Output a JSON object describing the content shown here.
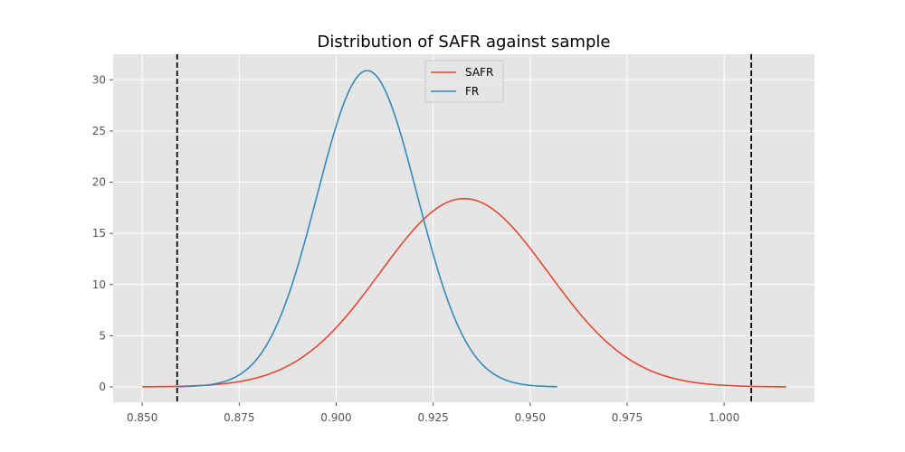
{
  "chart_data": {
    "type": "line",
    "title": "Distribution of SAFR against sample",
    "xlabel": "",
    "ylabel": "",
    "xlim": [
      0.8425,
      1.0233
    ],
    "ylim": [
      -1.5,
      32.5
    ],
    "x_ticks": [
      0.85,
      0.875,
      0.9,
      0.925,
      0.95,
      0.975,
      1.0
    ],
    "x_tick_labels": [
      "0.850",
      "0.875",
      "0.900",
      "0.925",
      "0.950",
      "0.975",
      "1.000"
    ],
    "y_ticks": [
      0,
      5,
      10,
      15,
      20,
      25,
      30
    ],
    "y_tick_labels": [
      "0",
      "5",
      "10",
      "15",
      "20",
      "25",
      "30"
    ],
    "grid": true,
    "legend_position": "top-center",
    "series": [
      {
        "name": "SAFR",
        "color": "#E24A33",
        "distribution": "normal",
        "mean": 0.933,
        "std": 0.0217,
        "x_range": [
          0.85,
          1.016
        ],
        "peak": 18.4
      },
      {
        "name": "FR",
        "color": "#348ABD",
        "distribution": "normal",
        "mean": 0.908,
        "std": 0.0129,
        "x_range": [
          0.859,
          0.957
        ],
        "peak": 30.9
      }
    ],
    "vertical_lines": [
      {
        "x": 0.859,
        "color": "#000000",
        "style": "dashed"
      },
      {
        "x": 1.007,
        "color": "#000000",
        "style": "dashed"
      }
    ]
  }
}
